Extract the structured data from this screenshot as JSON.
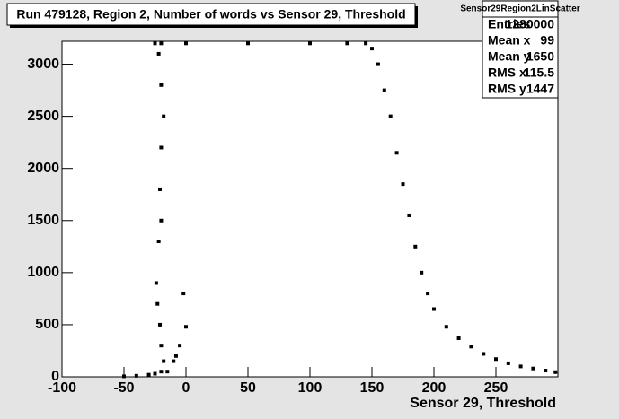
{
  "chart_data": {
    "type": "scatter",
    "title": "Run 479128, Region 2, Number of words vs Sensor 29, Threshold",
    "x_label": "Sensor 29, Threshold",
    "series": [
      {
        "color": "#000000",
        "x": [
          -50,
          -40,
          -30,
          -25,
          -20,
          -15,
          -10,
          -5,
          0,
          -2,
          -8,
          -18,
          -20,
          -21,
          -23,
          -24,
          -22,
          -20,
          -21,
          -20,
          -18,
          -20,
          -22,
          -25,
          -20,
          0,
          50,
          100,
          130,
          145,
          150,
          155,
          160,
          165,
          170,
          175,
          180,
          185,
          190,
          195,
          200,
          210,
          220,
          230,
          240,
          250,
          260,
          270,
          280,
          290,
          298
        ],
        "y": [
          5,
          10,
          20,
          30,
          50,
          50,
          150,
          300,
          480,
          800,
          200,
          150,
          300,
          500,
          700,
          900,
          1300,
          1500,
          1800,
          2200,
          2500,
          2800,
          3100,
          3200,
          3200,
          3200,
          3200,
          3200,
          3200,
          3200,
          3150,
          3000,
          2750,
          2500,
          2150,
          1850,
          1550,
          1250,
          1000,
          800,
          650,
          480,
          370,
          290,
          220,
          170,
          130,
          100,
          80,
          60,
          45
        ]
      }
    ],
    "xlim": [
      -100,
      300
    ],
    "ylim": [
      0,
      3220
    ],
    "xticks": [
      -100,
      -50,
      0,
      50,
      100,
      150,
      200,
      250
    ],
    "yticks": [
      0,
      500,
      1000,
      1500,
      2000,
      2500,
      3000
    ],
    "stats": {
      "name": "Sensor29Region2LinScatter",
      "rows": [
        {
          "label": "Entries",
          "value": 1280000
        },
        {
          "label": "Mean x",
          "value": 99
        },
        {
          "label": "Mean y",
          "value": 1650
        },
        {
          "label": "RMS x",
          "value": 115.5
        },
        {
          "label": "RMS y",
          "value": 1447
        }
      ]
    }
  }
}
